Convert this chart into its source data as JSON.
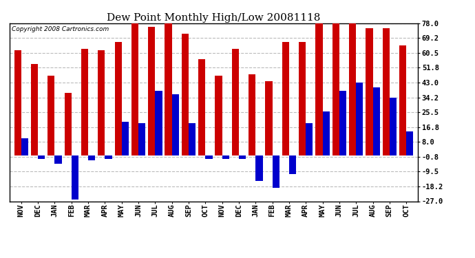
{
  "title": "Dew Point Monthly High/Low 20081118",
  "copyright": "Copyright 2008 Cartronics.com",
  "months": [
    "NOV",
    "DEC",
    "JAN",
    "FEB",
    "MAR",
    "APR",
    "MAY",
    "JUN",
    "JUL",
    "AUG",
    "SEP",
    "OCT",
    "NOV",
    "DEC",
    "JAN",
    "FEB",
    "MAR",
    "APR",
    "MAY",
    "JUN",
    "JUL",
    "AUG",
    "SEP",
    "OCT"
  ],
  "highs": [
    62,
    54,
    47,
    37,
    63,
    62,
    67,
    78,
    76,
    78,
    72,
    57,
    47,
    63,
    48,
    44,
    67,
    67,
    78,
    78,
    78,
    75,
    75,
    65
  ],
  "lows": [
    10,
    -2,
    -5,
    -26,
    -3,
    -2,
    20,
    19,
    38,
    36,
    19,
    -2,
    -2,
    -2,
    -15,
    -19,
    -11,
    19,
    26,
    38,
    43,
    40,
    34,
    14
  ],
  "yticks": [
    78.0,
    69.2,
    60.5,
    51.8,
    43.0,
    34.2,
    25.5,
    16.8,
    8.0,
    -0.8,
    -9.5,
    -18.2,
    -27.0
  ],
  "ymin": -27.0,
  "ymax": 78.0,
  "bar_color_high": "#cc0000",
  "bar_color_low": "#0000cc",
  "bg_color": "#ffffff",
  "grid_color": "#bbbbbb",
  "title_fontsize": 11,
  "tick_fontsize": 7.5,
  "copyright_fontsize": 6.5,
  "bar_width": 0.42,
  "figwidth": 6.9,
  "figheight": 3.75,
  "dpi": 100
}
